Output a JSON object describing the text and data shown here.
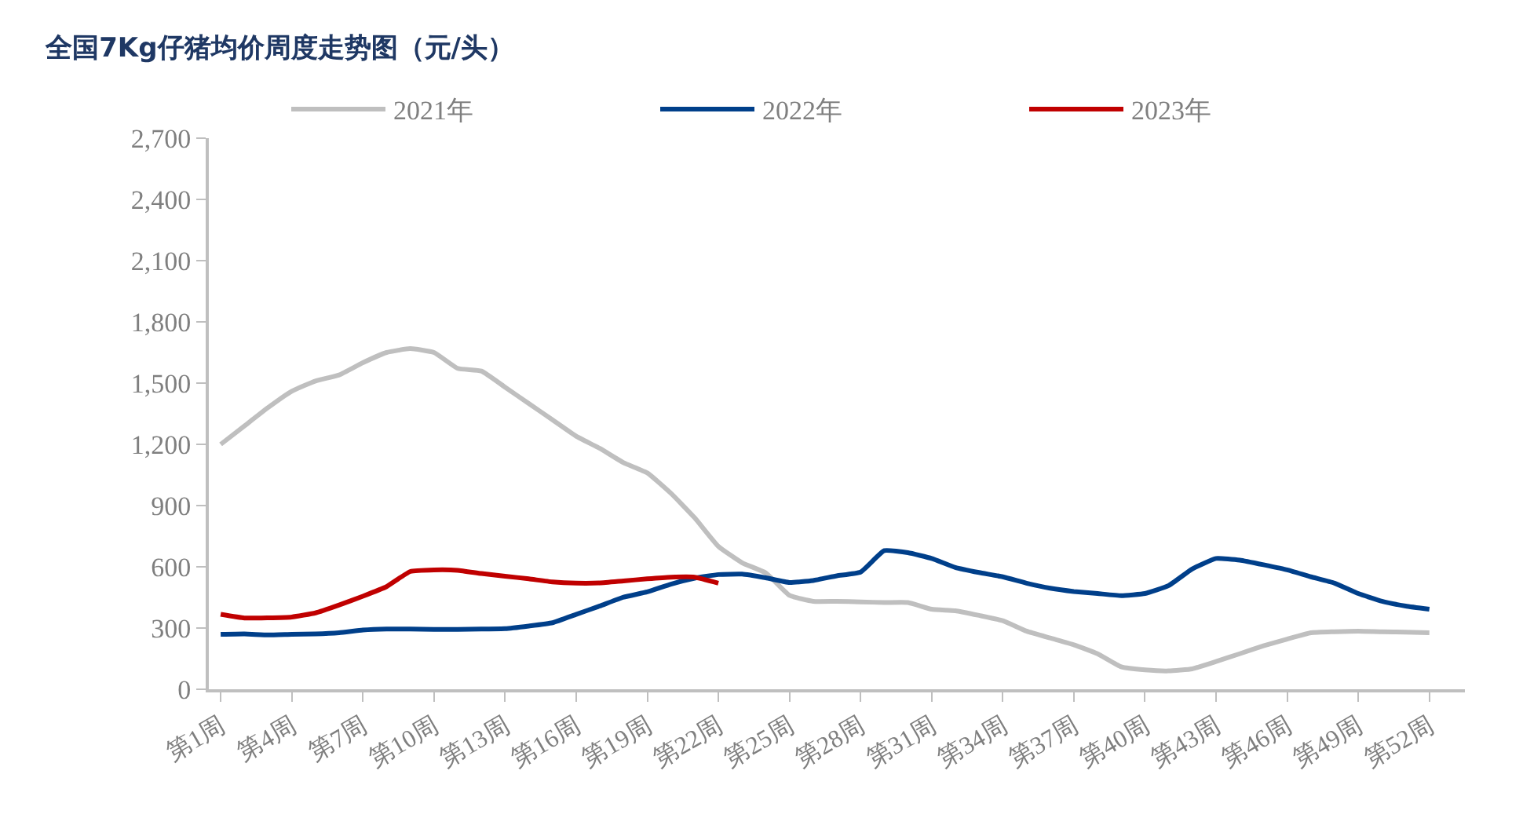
{
  "chart_data": {
    "type": "line",
    "title": "全国7Kg仔猪均价周度走势图（元/头）",
    "categories": [
      "第1周",
      null,
      null,
      "第4周",
      null,
      null,
      "第7周",
      null,
      null,
      "第10周",
      null,
      null,
      "第13周",
      null,
      null,
      "第16周",
      null,
      null,
      "第19周",
      null,
      null,
      "第22周",
      null,
      null,
      "第25周",
      null,
      null,
      "第28周",
      null,
      null,
      "第31周",
      null,
      null,
      "第34周",
      null,
      null,
      "第37周",
      null,
      null,
      "第40周",
      null,
      null,
      "第43周",
      null,
      null,
      "第46周",
      null,
      null,
      "第49周",
      null,
      null,
      "第52周",
      null
    ],
    "series": [
      {
        "name": "2021年",
        "color": "#bfbfbf",
        "values": [
          1200,
          1290,
          1380,
          1460,
          1510,
          1540,
          1600,
          1650,
          1669,
          1650,
          1572,
          1559,
          1480,
          1400,
          1320,
          1240,
          1180,
          1110,
          1060,
          960,
          840,
          700,
          620,
          570,
          460,
          431,
          431,
          428,
          425,
          425,
          392,
          385,
          362,
          336,
          285,
          251,
          218,
          174,
          110,
          95,
          90,
          100,
          136,
          174,
          213,
          246,
          277,
          282,
          285,
          282,
          280,
          277,
          null
        ]
      },
      {
        "name": "2022年",
        "color": "#003f8a",
        "values": [
          269,
          271,
          266,
          269,
          271,
          277,
          290,
          295,
          295,
          293,
          293,
          295,
          297,
          310,
          326,
          367,
          408,
          451,
          477,
          515,
          544,
          562,
          564,
          546,
          523,
          533,
          556,
          574,
          679,
          669,
          641,
          597,
          572,
          551,
          520,
          495,
          479,
          469,
          459,
          469,
          508,
          590,
          641,
          633,
          610,
          585,
          551,
          520,
          469,
          431,
          408,
          392,
          null
        ]
      },
      {
        "name": "2023年",
        "color": "#c00000",
        "values": [
          367,
          349,
          350,
          354,
          374,
          413,
          456,
          503,
          577,
          585,
          583,
          567,
          554,
          541,
          526,
          520,
          521,
          531,
          541,
          549,
          549,
          520,
          null,
          null,
          null,
          null,
          null,
          null,
          null,
          null,
          null,
          null,
          null,
          null,
          null,
          null,
          null,
          null,
          null,
          null,
          null,
          null,
          null,
          null,
          null,
          null,
          null,
          null,
          null,
          null,
          null,
          null,
          null
        ]
      }
    ],
    "ylim": [
      0,
      2700
    ],
    "yticks": [
      {
        "value": 0,
        "label": "0"
      },
      {
        "value": 300,
        "label": "300"
      },
      {
        "value": 600,
        "label": "600"
      },
      {
        "value": 900,
        "label": "900"
      },
      {
        "value": 1200,
        "label": "1,200"
      },
      {
        "value": 1500,
        "label": "1,500"
      },
      {
        "value": 1800,
        "label": "1,800"
      },
      {
        "value": 2100,
        "label": "2,100"
      },
      {
        "value": 2400,
        "label": "2,400"
      },
      {
        "value": 2700,
        "label": "2,700"
      }
    ],
    "grid": false,
    "legend": "top",
    "marker": "none",
    "line_style": "solid"
  }
}
